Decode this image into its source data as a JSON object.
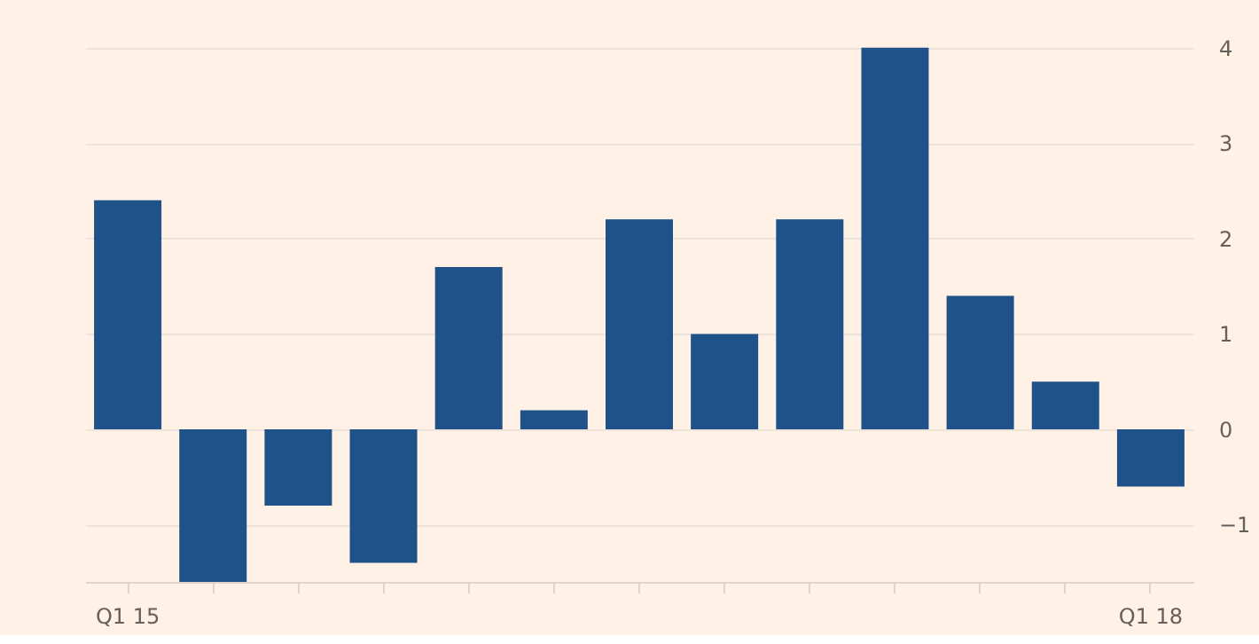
{
  "chart_data": {
    "type": "bar",
    "categories": [
      "Q1 15",
      null,
      null,
      null,
      null,
      null,
      null,
      null,
      null,
      null,
      null,
      null,
      "Q1 18"
    ],
    "values": [
      2.4,
      -1.6,
      -0.8,
      -1.4,
      1.7,
      0.2,
      2.2,
      1.0,
      2.2,
      4.0,
      1.4,
      0.5,
      -0.6
    ],
    "color": "#1f5289",
    "ylim": [
      -1.6,
      4.5
    ],
    "yticks": [
      -1,
      0,
      1,
      2,
      3,
      4
    ],
    "grid": "y"
  }
}
